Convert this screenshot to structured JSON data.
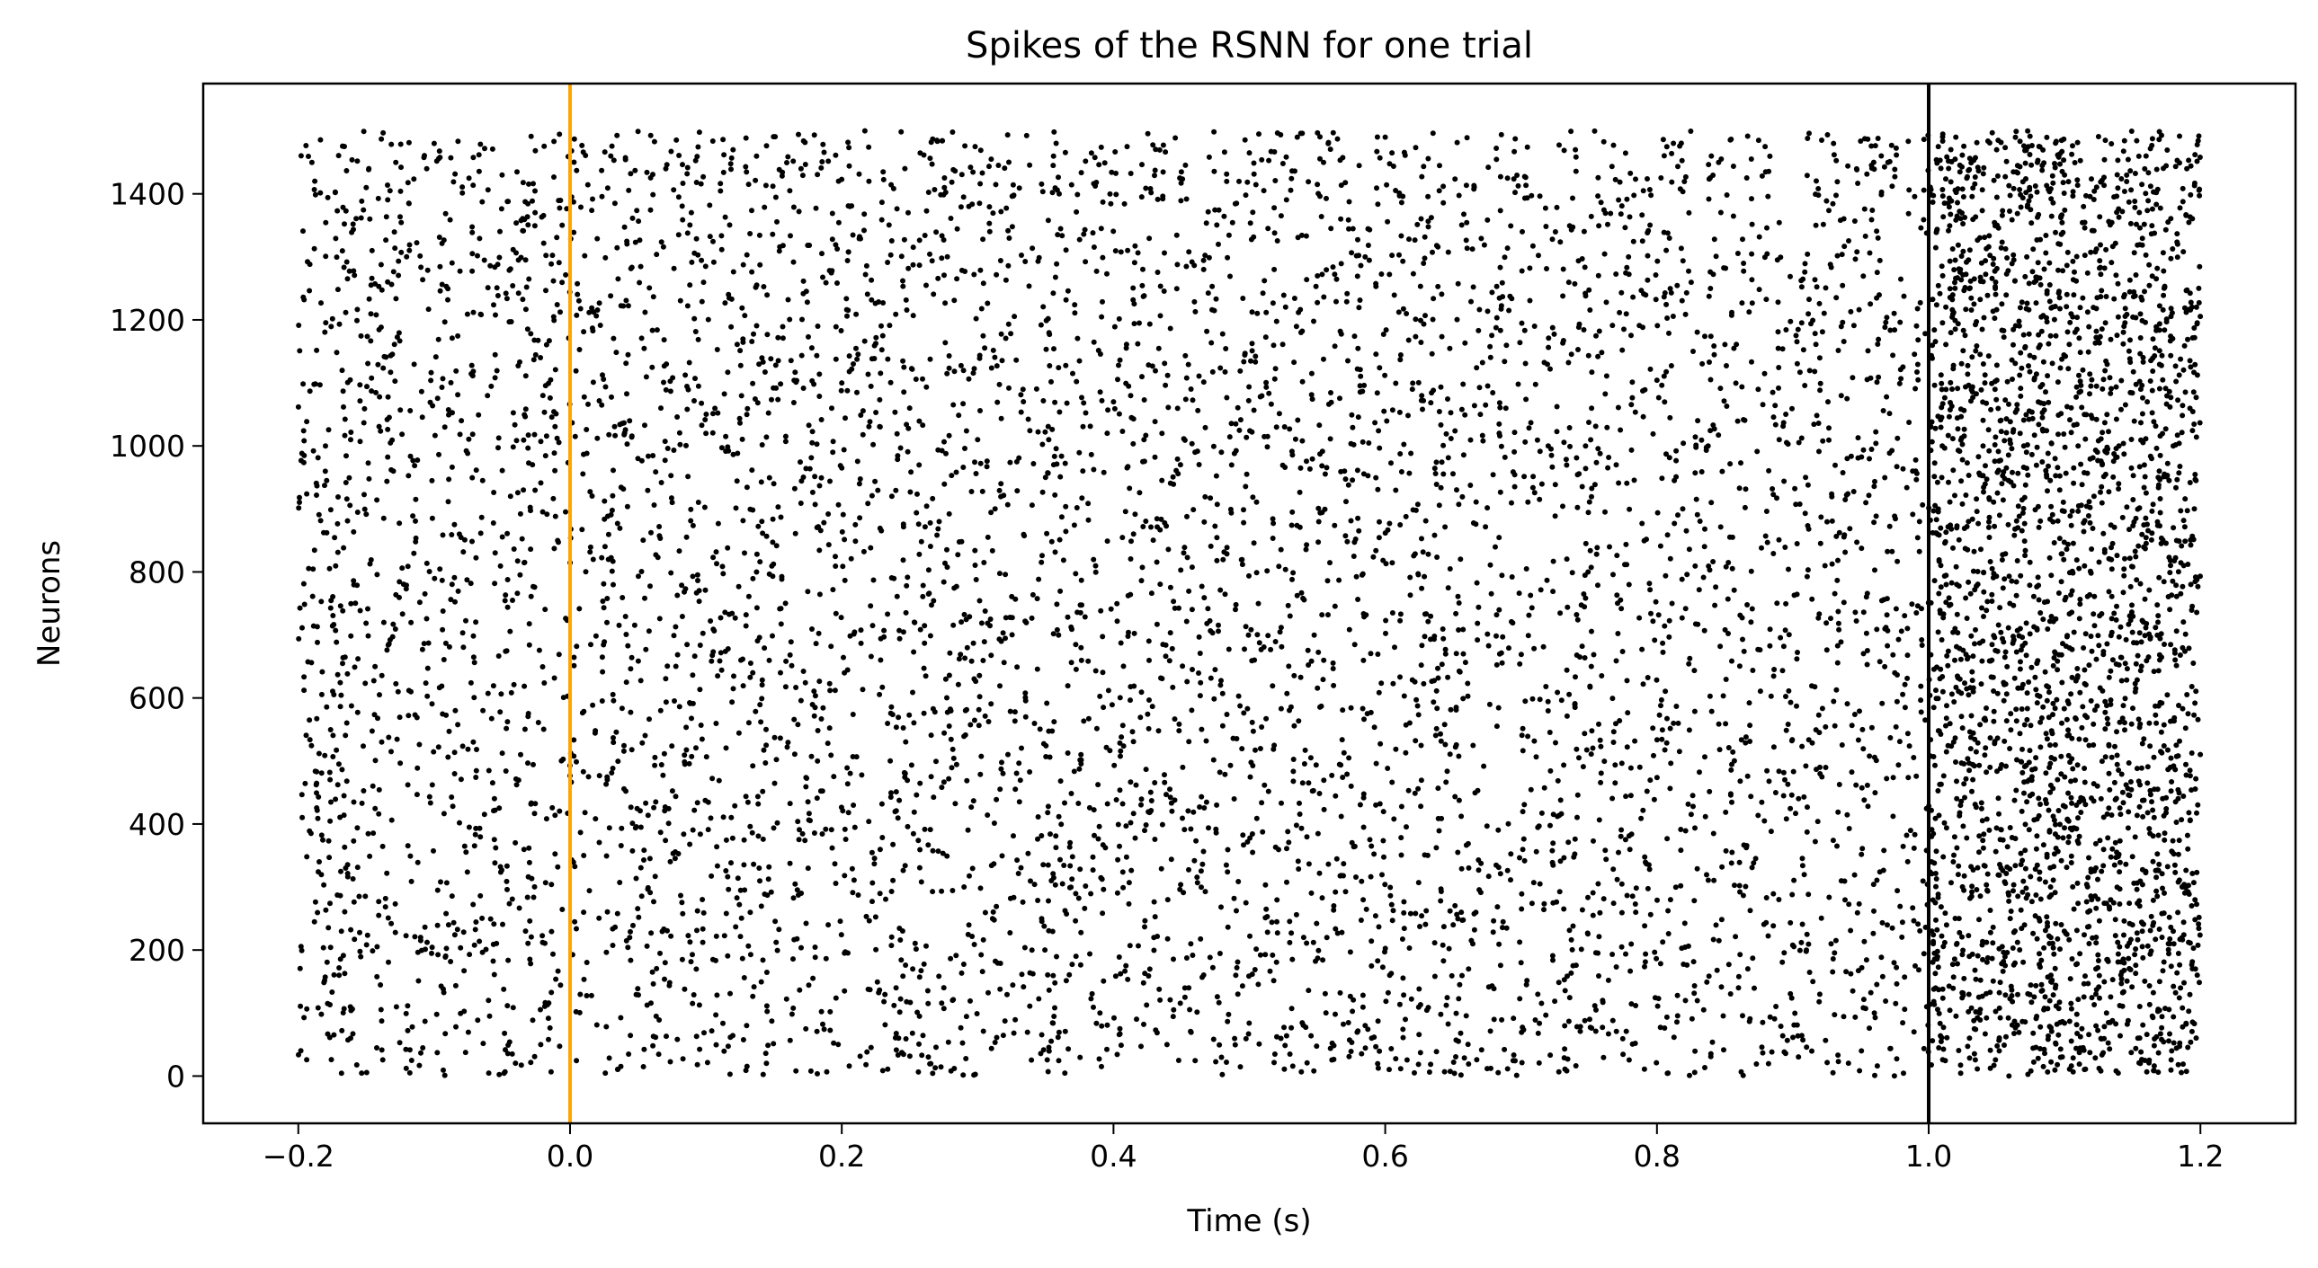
{
  "chart_data": {
    "type": "scatter",
    "title": "Spikes of the RSNN for one trial",
    "xlabel": "Time (s)",
    "ylabel": "Neurons",
    "xlim": [
      -0.27,
      1.27
    ],
    "ylim": [
      -75,
      1575
    ],
    "x_ticks": [
      -0.2,
      0.0,
      0.2,
      0.4,
      0.6,
      0.8,
      1.0,
      1.2
    ],
    "x_tick_labels": [
      "−0.2",
      "0.0",
      "0.2",
      "0.4",
      "0.6",
      "0.8",
      "1.0",
      "1.2"
    ],
    "y_ticks": [
      0,
      200,
      400,
      600,
      800,
      1000,
      1200,
      1400
    ],
    "y_tick_labels": [
      "0",
      "200",
      "400",
      "600",
      "800",
      "1000",
      "1200",
      "1400"
    ],
    "grid": false,
    "marker_color": "#000000",
    "time_range": [
      -0.2,
      1.2
    ],
    "neuron_range": [
      0,
      1500
    ],
    "vertical_lines": [
      {
        "x": 0.0,
        "color": "#FFA500"
      },
      {
        "x": 1.0,
        "color": "#000000"
      }
    ],
    "spikes_x": [
      -0.19,
      -0.15,
      -0.1,
      -0.05,
      0.03,
      0.08,
      0.12,
      0.17,
      0.22,
      0.27,
      0.31,
      0.36,
      0.41,
      0.45,
      0.5,
      0.55,
      0.6,
      0.64,
      0.69,
      0.74,
      0.79,
      0.84,
      0.88,
      0.93,
      0.97,
      1.02,
      1.05,
      1.08,
      1.1,
      1.13,
      1.16,
      1.19,
      -0.18,
      -0.13,
      -0.08,
      -0.02,
      0.05,
      0.1,
      0.15,
      0.2,
      0.25,
      0.3,
      0.35,
      0.4,
      0.46,
      0.52,
      0.57,
      0.62,
      0.67,
      0.72,
      0.77,
      0.83,
      0.89,
      0.94,
      1.01,
      1.04,
      1.07,
      1.11,
      1.14,
      1.18,
      -0.17,
      -0.11,
      -0.06,
      0.01,
      0.07,
      0.13,
      0.19,
      0.24,
      0.29,
      0.34,
      0.39,
      0.44,
      0.49,
      0.54,
      0.59,
      0.65,
      0.7,
      0.76,
      0.81,
      0.86,
      0.91,
      0.96,
      1.03,
      1.06,
      1.09,
      1.12,
      1.15,
      1.17
    ],
    "spikes_y": [
      1450,
      1410,
      1480,
      1430,
      1460,
      1395,
      1470,
      1440,
      1420,
      1485,
      1455,
      1400,
      1475,
      1435,
      1465,
      1415,
      1490,
      1445,
      1425,
      1470,
      1405,
      1460,
      1435,
      1480,
      1450,
      1490,
      1470,
      1450,
      1430,
      1485,
      1460,
      1440,
      1000,
      960,
      1040,
      1080,
      980,
      1020,
      940,
      1100,
      1060,
      1010,
      950,
      1070,
      990,
      1030,
      960,
      1090,
      1050,
      1000,
      970,
      1040,
      1010,
      980,
      1000,
      1000,
      1000,
      1000,
      1000,
      1000,
      160,
      220,
      120,
      260,
      180,
      80,
      240,
      140,
      300,
      200,
      100,
      280,
      160,
      220,
      60,
      240,
      180,
      120,
      280,
      140,
      200,
      100,
      60,
      250,
      160,
      280,
      240,
      150
    ],
    "annotations": []
  }
}
